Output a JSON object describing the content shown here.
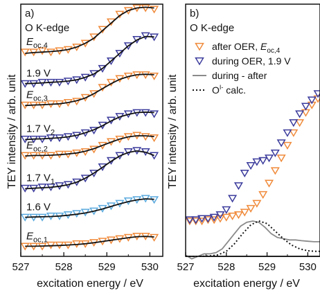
{
  "chart_data": [
    {
      "panel_label": "a)",
      "type": "scatter",
      "title": "O K-edge",
      "xlabel": "excitation energy / eV",
      "ylabel": "TEY intensity / arb. unit",
      "xlim": [
        527,
        530.3
      ],
      "ylim": [
        0,
        1
      ],
      "x_ticks": [
        "527",
        "528",
        "529",
        "530"
      ],
      "series": [
        {
          "name_main": "E",
          "name_sub": "oc,4",
          "color": "#f08a3a",
          "marker": "triangle-down",
          "x": [
            527.1,
            527.3,
            527.5,
            527.7,
            527.9,
            528.1,
            528.3,
            528.5,
            528.7,
            528.9,
            529.1,
            529.3,
            529.5,
            529.7,
            529.9,
            530.1
          ],
          "y": [
            0.81,
            0.81,
            0.815,
            0.81,
            0.815,
            0.82,
            0.83,
            0.845,
            0.87,
            0.9,
            0.93,
            0.96,
            0.975,
            0.985,
            0.985,
            0.98
          ],
          "fit": [
            0.805,
            0.808,
            0.81,
            0.812,
            0.815,
            0.82,
            0.83,
            0.845,
            0.865,
            0.895,
            0.925,
            0.955,
            0.975,
            0.985,
            0.988,
            0.985
          ]
        },
        {
          "name_main": "1.9 V",
          "name_sub": "",
          "color": "#3b3b9c",
          "marker": "triangle-down",
          "x": [
            527.1,
            527.3,
            527.5,
            527.7,
            527.9,
            528.1,
            528.3,
            528.5,
            528.7,
            528.9,
            529.1,
            529.3,
            529.5,
            529.7,
            529.9,
            530.1
          ],
          "y": [
            0.685,
            0.685,
            0.69,
            0.69,
            0.69,
            0.695,
            0.7,
            0.71,
            0.725,
            0.745,
            0.775,
            0.805,
            0.835,
            0.86,
            0.875,
            0.87
          ],
          "fit": [
            0.685,
            0.686,
            0.688,
            0.69,
            0.692,
            0.695,
            0.7,
            0.71,
            0.723,
            0.745,
            0.775,
            0.805,
            0.835,
            0.858,
            0.872,
            0.87
          ]
        },
        {
          "name_main": "E",
          "name_sub": "oc,3",
          "color": "#f08a3a",
          "marker": "triangle-down",
          "x": [
            527.1,
            527.3,
            527.5,
            527.7,
            527.9,
            528.1,
            528.3,
            528.5,
            528.7,
            528.9,
            529.1,
            529.3,
            529.5,
            529.7,
            529.9,
            530.1
          ],
          "y": [
            0.6,
            0.6,
            0.6,
            0.605,
            0.605,
            0.61,
            0.615,
            0.63,
            0.645,
            0.67,
            0.69,
            0.705,
            0.715,
            0.72,
            0.72,
            0.715
          ],
          "fit": [
            0.598,
            0.6,
            0.601,
            0.603,
            0.605,
            0.61,
            0.617,
            0.628,
            0.645,
            0.665,
            0.685,
            0.702,
            0.713,
            0.72,
            0.722,
            0.72
          ]
        },
        {
          "name_main": "1.7 V",
          "name_sub": "2",
          "color": "#3b3b9c",
          "marker": "triangle-down",
          "x": [
            527.1,
            527.3,
            527.5,
            527.7,
            527.9,
            528.1,
            528.3,
            528.5,
            528.7,
            528.9,
            529.1,
            529.3,
            529.5,
            529.7,
            529.9,
            530.1
          ],
          "y": [
            0.465,
            0.465,
            0.465,
            0.47,
            0.47,
            0.475,
            0.48,
            0.49,
            0.5,
            0.52,
            0.54,
            0.555,
            0.565,
            0.57,
            0.57,
            0.565
          ],
          "fit": [
            0.463,
            0.465,
            0.466,
            0.468,
            0.47,
            0.474,
            0.48,
            0.49,
            0.502,
            0.518,
            0.537,
            0.553,
            0.563,
            0.57,
            0.572,
            0.57
          ]
        },
        {
          "name_main": "E",
          "name_sub": "oc,2",
          "color": "#f08a3a",
          "marker": "triangle-down",
          "x": [
            527.1,
            527.3,
            527.5,
            527.7,
            527.9,
            528.1,
            528.3,
            528.5,
            528.7,
            528.9,
            529.1,
            529.3,
            529.5,
            529.7,
            529.9,
            530.1
          ],
          "y": [
            0.4,
            0.4,
            0.4,
            0.4,
            0.405,
            0.405,
            0.41,
            0.415,
            0.425,
            0.44,
            0.455,
            0.465,
            0.475,
            0.48,
            0.475,
            0.47
          ],
          "fit": [
            0.398,
            0.4,
            0.4,
            0.401,
            0.403,
            0.406,
            0.41,
            0.417,
            0.427,
            0.44,
            0.453,
            0.465,
            0.474,
            0.478,
            0.478,
            0.475
          ]
        },
        {
          "name_main": "1.7 V",
          "name_sub": "1",
          "color": "#3b3b9c",
          "marker": "triangle-down",
          "x": [
            527.1,
            527.3,
            527.5,
            527.7,
            527.9,
            528.1,
            528.3,
            528.5,
            528.7,
            528.9,
            529.1,
            529.3,
            529.5,
            529.7,
            529.9,
            530.1
          ],
          "y": [
            0.27,
            0.27,
            0.275,
            0.275,
            0.28,
            0.285,
            0.295,
            0.31,
            0.33,
            0.355,
            0.38,
            0.4,
            0.415,
            0.42,
            0.415,
            0.4
          ],
          "fit": [
            0.268,
            0.27,
            0.272,
            0.274,
            0.278,
            0.284,
            0.294,
            0.31,
            0.33,
            0.353,
            0.377,
            0.398,
            0.412,
            0.418,
            0.413,
            0.4
          ]
        },
        {
          "name_main": "1.6 V",
          "name_sub": "",
          "color": "#5aa9dd",
          "marker": "triangle-down",
          "x": [
            527.1,
            527.3,
            527.5,
            527.7,
            527.9,
            528.1,
            528.3,
            528.5,
            528.7,
            528.9,
            529.1,
            529.3,
            529.5,
            529.7,
            529.9,
            530.1
          ],
          "y": [
            0.155,
            0.155,
            0.155,
            0.16,
            0.16,
            0.165,
            0.17,
            0.175,
            0.18,
            0.19,
            0.2,
            0.21,
            0.22,
            0.225,
            0.23,
            0.225
          ],
          "fit": [
            0.155,
            0.156,
            0.157,
            0.158,
            0.16,
            0.163,
            0.167,
            0.172,
            0.179,
            0.188,
            0.198,
            0.208,
            0.217,
            0.224,
            0.228,
            0.226
          ]
        },
        {
          "name_main": "E",
          "name_sub": "oc,1",
          "color": "#f08a3a",
          "marker": "triangle-down",
          "x": [
            527.1,
            527.3,
            527.5,
            527.7,
            527.9,
            528.1,
            528.3,
            528.5,
            528.7,
            528.9,
            529.1,
            529.3,
            529.5,
            529.7,
            529.9,
            530.1
          ],
          "y": [
            0.04,
            0.04,
            0.04,
            0.045,
            0.045,
            0.045,
            0.05,
            0.05,
            0.055,
            0.06,
            0.065,
            0.07,
            0.075,
            0.08,
            0.08,
            0.075
          ],
          "fit": [
            0.04,
            0.04,
            0.041,
            0.042,
            0.043,
            0.045,
            0.047,
            0.05,
            0.054,
            0.059,
            0.064,
            0.069,
            0.074,
            0.078,
            0.079,
            0.077
          ]
        }
      ]
    },
    {
      "panel_label": "b)",
      "type": "scatter",
      "title": "O K-edge",
      "xlabel": "excitation energy / eV",
      "ylabel": "TEY intensity / arb. unit",
      "xlim": [
        527,
        530.3
      ],
      "ylim": [
        0,
        1
      ],
      "x_ticks": [
        "527",
        "528",
        "529",
        "530"
      ],
      "series": [
        {
          "name_main": "after OER, ",
          "name_italic": "E",
          "name_sub": "oc,4",
          "color": "#f08a3a",
          "marker": "triangle-down",
          "style": "markers",
          "x": [
            527.1,
            527.25,
            527.4,
            527.55,
            527.7,
            527.85,
            528.0,
            528.15,
            528.3,
            528.45,
            528.6,
            528.75,
            528.9,
            529.05,
            529.2,
            529.35,
            529.5,
            529.65,
            529.8,
            529.95,
            530.1,
            530.25
          ],
          "y": [
            0.14,
            0.14,
            0.14,
            0.145,
            0.145,
            0.15,
            0.155,
            0.16,
            0.165,
            0.175,
            0.19,
            0.21,
            0.245,
            0.29,
            0.34,
            0.39,
            0.44,
            0.49,
            0.53,
            0.57,
            0.6,
            0.625
          ]
        },
        {
          "name_main": "during OER, 1.9 V",
          "name_italic": "",
          "name_sub": "",
          "color": "#3b3b9c",
          "marker": "triangle-down",
          "style": "markers",
          "x": [
            527.1,
            527.25,
            527.4,
            527.55,
            527.7,
            527.85,
            528.0,
            528.15,
            528.3,
            528.45,
            528.6,
            528.75,
            528.9,
            529.05,
            529.2,
            529.35,
            529.5,
            529.65,
            529.8,
            529.95,
            530.1,
            530.25
          ],
          "y": [
            0.145,
            0.145,
            0.15,
            0.15,
            0.155,
            0.165,
            0.185,
            0.23,
            0.28,
            0.33,
            0.36,
            0.375,
            0.38,
            0.39,
            0.41,
            0.45,
            0.49,
            0.53,
            0.565,
            0.595,
            0.62,
            0.645
          ]
        },
        {
          "name_main": "during - after",
          "name_italic": "",
          "name_sub": "",
          "color": "#8a8a8a",
          "marker": "none",
          "style": "solid",
          "x": [
            527.0,
            527.15,
            527.3,
            527.45,
            527.6,
            527.75,
            527.9,
            528.05,
            528.2,
            528.35,
            528.5,
            528.65,
            528.8,
            528.95,
            529.1,
            529.25,
            529.4,
            529.55,
            529.7,
            529.85,
            530.0,
            530.15,
            530.3
          ],
          "y": [
            0.005,
            -0.01,
            0.0,
            0.01,
            0.01,
            0.015,
            0.03,
            0.06,
            0.09,
            0.12,
            0.135,
            0.14,
            0.135,
            0.115,
            0.09,
            0.075,
            0.07,
            0.065,
            0.065,
            0.062,
            0.06,
            0.058,
            0.058
          ]
        },
        {
          "name_main": "O",
          "name_sup": "I-",
          "name_tail": " calc.",
          "name_italic": "",
          "name_sub": "",
          "color": "#111111",
          "marker": "none",
          "style": "dotted",
          "x": [
            527.0,
            527.2,
            527.4,
            527.6,
            527.8,
            528.0,
            528.2,
            528.4,
            528.6,
            528.8,
            529.0,
            529.2,
            529.4,
            529.6,
            529.8,
            530.0,
            530.2,
            530.3
          ],
          "y": [
            0.0,
            0.0,
            0.0,
            0.002,
            0.006,
            0.02,
            0.05,
            0.09,
            0.125,
            0.14,
            0.13,
            0.1,
            0.07,
            0.045,
            0.03,
            0.022,
            0.02,
            0.02
          ]
        }
      ]
    }
  ]
}
